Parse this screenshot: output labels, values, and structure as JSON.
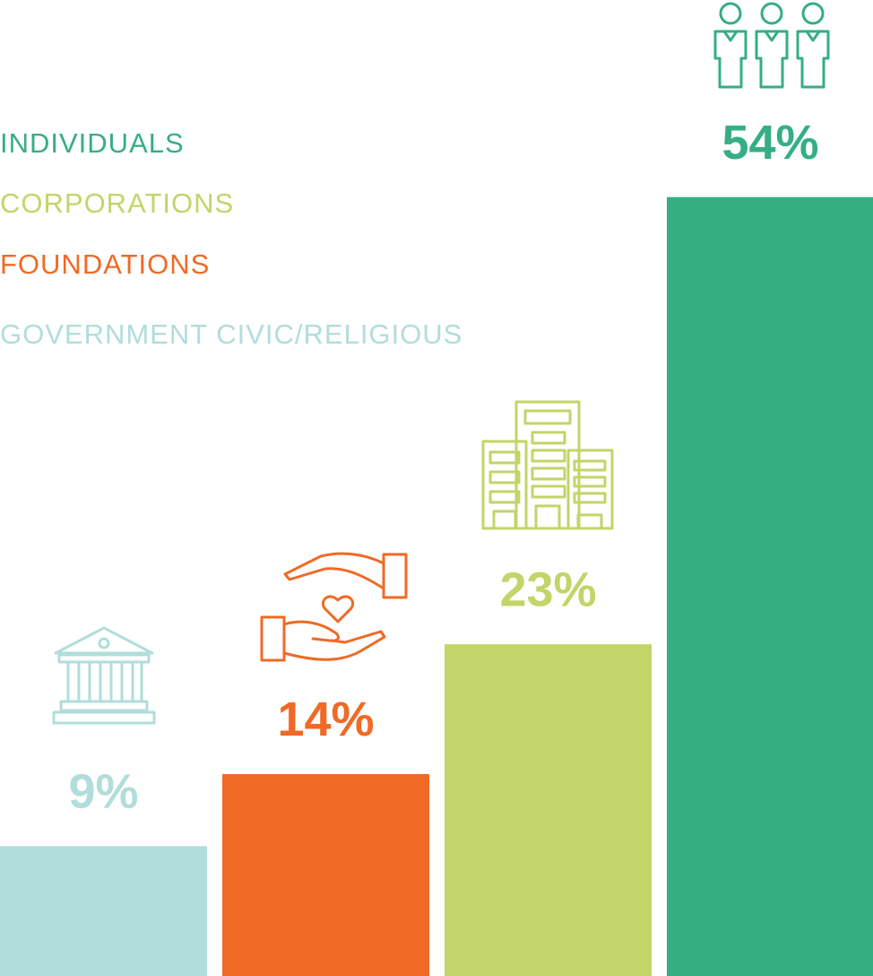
{
  "chart_data": {
    "type": "bar",
    "series": [
      {
        "name": "INDIVIDUALS",
        "color": "#35ae84",
        "values": [
          54
        ],
        "value_labels": [
          "54%"
        ]
      },
      {
        "name": "CORPORATIONS",
        "color": "#c3d469",
        "values": [
          23
        ],
        "value_labels": [
          "23%"
        ]
      },
      {
        "name": "FOUNDATIONS",
        "color": "#f06a25",
        "values": [
          14
        ],
        "value_labels": [
          "14%"
        ]
      },
      {
        "name": "GOVERNMENT CIVIC/RELIGIOUS",
        "color": "#b1dddb",
        "values": [
          9
        ],
        "value_labels": [
          "9%"
        ]
      }
    ]
  }
}
